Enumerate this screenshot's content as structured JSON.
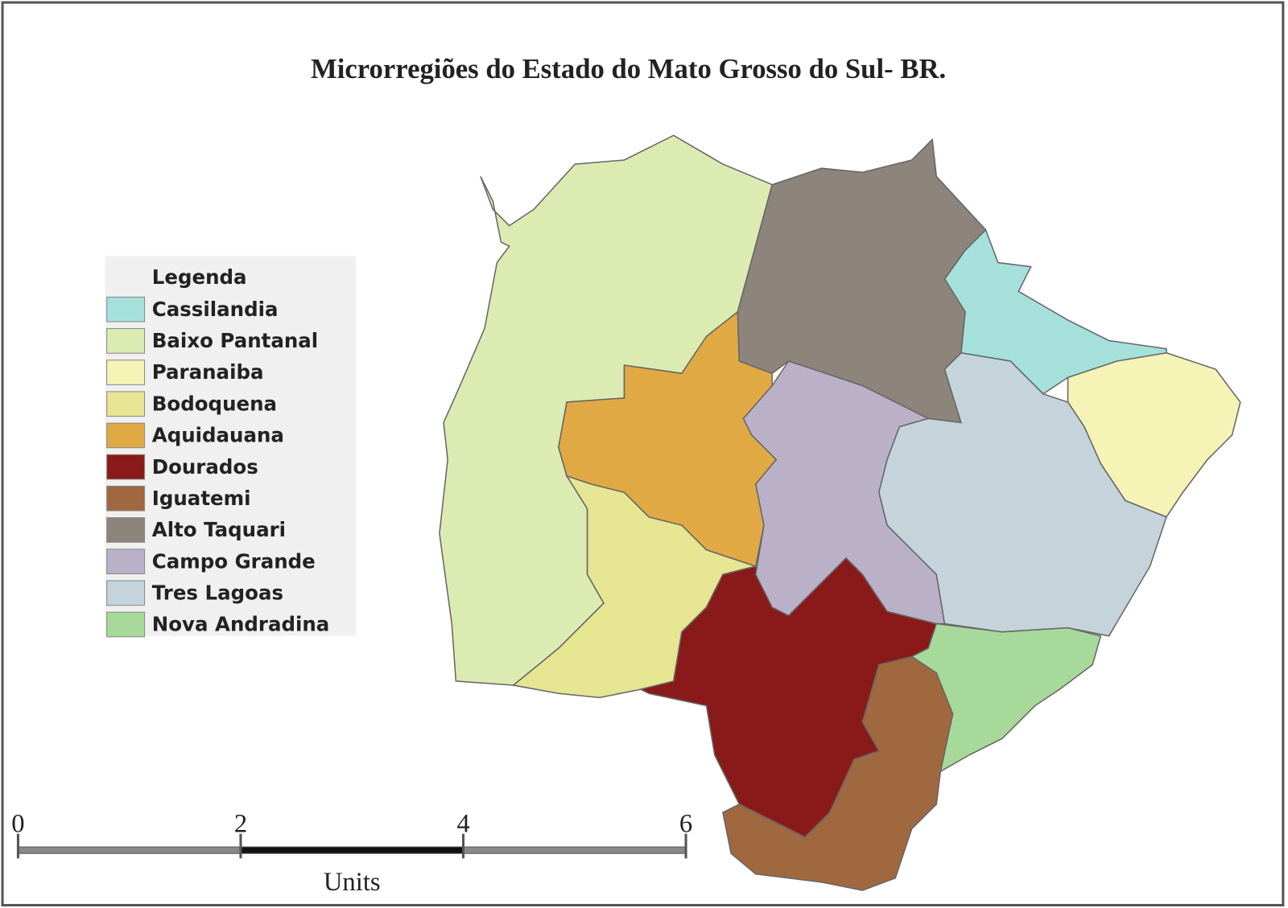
{
  "title": "Microrregiões do Estado do Mato Grosso do Sul- BR.",
  "legend": {
    "title": "Legenda",
    "items": [
      {
        "label": "Cassilandia",
        "color": "#a6e0db"
      },
      {
        "label": "Baixo Pantanal",
        "color": "#dcebb2"
      },
      {
        "label": "Paranaiba",
        "color": "#f6f3b6"
      },
      {
        "label": "Bodoquena",
        "color": "#e6e591"
      },
      {
        "label": "Aquidauana",
        "color": "#e0a944"
      },
      {
        "label": "Dourados",
        "color": "#8a1a19"
      },
      {
        "label": "Iguatemi",
        "color": "#a0683f"
      },
      {
        "label": "Alto Taquari",
        "color": "#8d847b"
      },
      {
        "label": "Campo Grande",
        "color": "#bab1c9"
      },
      {
        "label": "Tres Lagoas",
        "color": "#c5d3db"
      },
      {
        "label": "Nova Andradina",
        "color": "#a7d99b"
      }
    ]
  },
  "scale": {
    "ticks": [
      0,
      2,
      4,
      6
    ],
    "unit": "Units"
  }
}
